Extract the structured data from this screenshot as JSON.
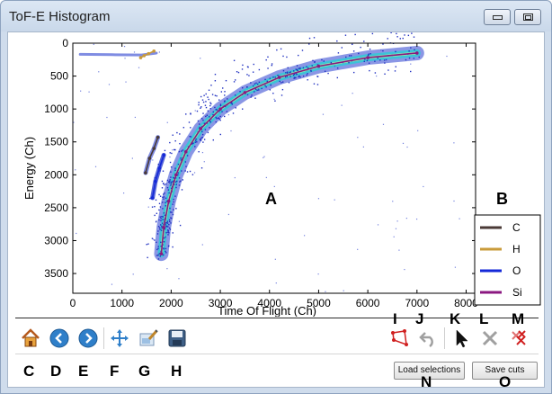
{
  "window": {
    "title": "ToF-E Histogram"
  },
  "chart_data": {
    "type": "heatmap",
    "title": "",
    "xlabel": "Time Of Flight (Ch)",
    "ylabel": "Energy (Ch)",
    "xlim": [
      0,
      8192
    ],
    "ylim": [
      3800,
      0
    ],
    "x_ticks": [
      0,
      1000,
      2000,
      3000,
      4000,
      5000,
      6000,
      7000,
      8000
    ],
    "y_ticks": [
      0,
      500,
      1000,
      1500,
      2000,
      2500,
      3000,
      3500
    ],
    "legend": {
      "placement": "bottom-right",
      "entries": [
        {
          "name": "C",
          "color": "#4a3a36"
        },
        {
          "name": "H",
          "color": "#c99b3a"
        },
        {
          "name": "O",
          "color": "#1428d8"
        },
        {
          "name": "Si",
          "color": "#8b1880"
        }
      ]
    },
    "series": [
      {
        "name": "Si",
        "color": "#8b1880",
        "x": [
          1800,
          1850,
          1950,
          2100,
          2300,
          2600,
          3000,
          3500,
          4200,
          5000,
          6000,
          7000
        ],
        "y": [
          3200,
          2800,
          2400,
          2000,
          1650,
          1300,
          1000,
          750,
          520,
          350,
          220,
          150
        ]
      },
      {
        "name": "O",
        "color": "#1428d8",
        "x": [
          1620,
          1680,
          1760,
          1850
        ],
        "y": [
          2350,
          2100,
          1900,
          1700
        ]
      },
      {
        "name": "C",
        "color": "#4a3a36",
        "x": [
          1480,
          1560,
          1650,
          1730
        ],
        "y": [
          1970,
          1750,
          1600,
          1430
        ]
      },
      {
        "name": "H",
        "color": "#c99b3a",
        "x": [
          1380,
          1450,
          1540,
          1650
        ],
        "y": [
          220,
          190,
          160,
          120
        ]
      }
    ]
  },
  "annotations": {
    "A": "A",
    "B": "B",
    "C": "C",
    "D": "D",
    "E": "E",
    "F": "F",
    "G": "G",
    "H": "H",
    "I": "I",
    "J": "J",
    "K": "K",
    "L": "L",
    "M": "M",
    "N": "N",
    "O": "O"
  },
  "toolbar": {
    "icons": [
      "home-icon",
      "back-arrow-icon",
      "forward-arrow-icon",
      "pan-icon",
      "configure-subplots-icon",
      "save-icon",
      "polygon-select-icon",
      "undo-icon",
      "pointer-icon",
      "delete-icon",
      "delete-all-icon"
    ],
    "colors": {
      "arrow_blue": "#2f7fc9",
      "polygon_red": "#d02020",
      "disabled_gray": "#a0a0a0"
    }
  },
  "buttons": {
    "load_selections": "Load selections",
    "save_cuts": "Save cuts"
  }
}
